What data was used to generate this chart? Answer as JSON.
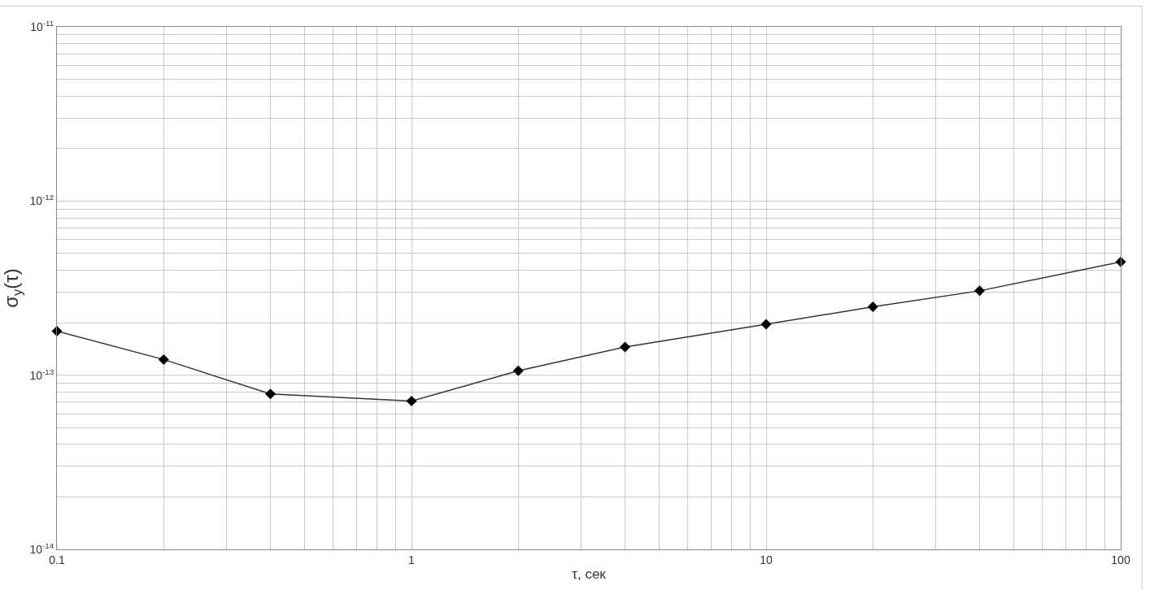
{
  "chart_data": {
    "type": "line",
    "xlabel": "τ, сек",
    "ylabel": "σ$_{y}$(τ)",
    "x": [
      0.1,
      0.2,
      0.4,
      1,
      2,
      4,
      10,
      20,
      40,
      100
    ],
    "series": [
      {
        "color": "#000000",
        "values": [
          1.79e-13,
          1.23e-13,
          7.8e-14,
          7.1e-14,
          1.06e-13,
          1.45e-13,
          1.96e-13,
          2.47e-13,
          3.05e-13,
          4.47e-13
        ]
      }
    ],
    "log": "xy",
    "grid": true,
    "marker": "diamond",
    "line_style": "solid",
    "legend": false,
    "xlim": [
      0.1,
      100
    ],
    "ylim": [
      1e-14,
      1e-11
    ],
    "xticks": [
      0.1,
      {
        "value": 0.2,
        "label": null
      },
      {
        "value": 0.3,
        "label": null
      },
      {
        "value": 0.4,
        "label": null
      },
      {
        "value": 0.5,
        "label": null
      },
      {
        "value": 0.6,
        "label": null
      },
      {
        "value": 0.7,
        "label": null
      },
      {
        "value": 0.8,
        "label": null
      },
      {
        "value": 0.9,
        "label": null
      },
      1,
      {
        "value": 2,
        "label": null
      },
      {
        "value": 3,
        "label": null
      },
      {
        "value": 4,
        "label": null
      },
      {
        "value": 5,
        "label": null
      },
      {
        "value": 6,
        "label": null
      },
      {
        "value": 7,
        "label": null
      },
      {
        "value": 8,
        "label": null
      },
      {
        "value": 9,
        "label": null
      },
      10,
      {
        "value": 20,
        "label": null
      },
      {
        "value": 30,
        "label": null
      },
      {
        "value": 40,
        "label": null
      },
      {
        "value": 50,
        "label": null
      },
      {
        "value": 60,
        "label": null
      },
      {
        "value": 70,
        "label": null
      },
      {
        "value": 80,
        "label": null
      },
      {
        "value": 90,
        "label": null
      },
      100
    ],
    "yticks": [
      {
        "value": 1e-14,
        "label": "10$^{-14}$"
      },
      {
        "value": 2e-14,
        "label": null
      },
      {
        "value": 3e-14,
        "label": null
      },
      {
        "value": 4e-14,
        "label": null
      },
      {
        "value": 5e-14,
        "label": null
      },
      {
        "value": 6e-14,
        "label": null
      },
      {
        "value": 7e-14,
        "label": null
      },
      {
        "value": 8e-14,
        "label": null
      },
      {
        "value": 9e-14,
        "label": null
      },
      {
        "value": 1e-13,
        "label": "10$^{-13}$"
      },
      {
        "value": 2e-13,
        "label": null
      },
      {
        "value": 3e-13,
        "label": null
      },
      {
        "value": 4e-13,
        "label": null
      },
      {
        "value": 5e-13,
        "label": null
      },
      {
        "value": 6e-13,
        "label": null
      },
      {
        "value": 7e-13,
        "label": null
      },
      {
        "value": 8e-13,
        "label": null
      },
      {
        "value": 9e-13,
        "label": null
      },
      {
        "value": 1e-12,
        "label": "10$^{-12}$"
      },
      {
        "value": 2e-12,
        "label": null
      },
      {
        "value": 3e-12,
        "label": null
      },
      {
        "value": 4e-12,
        "label": null
      },
      {
        "value": 5e-12,
        "label": null
      },
      {
        "value": 6e-12,
        "label": null
      },
      {
        "value": 7e-12,
        "label": null
      },
      {
        "value": 8e-12,
        "label": null
      },
      {
        "value": 9e-12,
        "label": null
      },
      {
        "value": 1e-11,
        "label": "10$^{-11}$"
      }
    ]
  }
}
